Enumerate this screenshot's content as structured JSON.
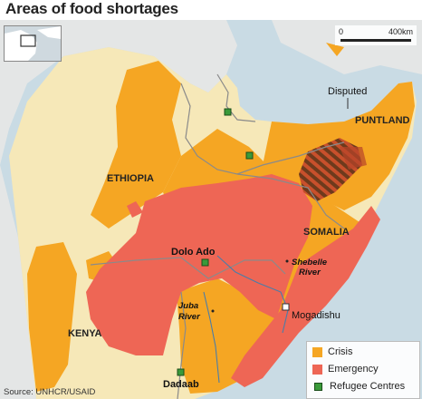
{
  "title": "Areas of food shortages",
  "scale": {
    "start": "0",
    "end": "400km"
  },
  "labels": {
    "disputed": "Disputed",
    "puntland": "PUNTLAND",
    "ethiopia": "ETHIOPIA",
    "somalia": "SOMALIA",
    "kenya": "KENYA",
    "dolo_ado": "Dolo Ado",
    "shebelle_1": "Shebelle",
    "shebelle_2": "River",
    "juba_1": "Juba",
    "juba_2": "River",
    "mogadishu": "Mogadishu",
    "dadaab": "Dadaab"
  },
  "legend": [
    {
      "label": "Crisis",
      "color": "#f5a623"
    },
    {
      "label": "Emergency",
      "color": "#ee6655"
    },
    {
      "label": "Refugee Centres",
      "color": "#3a9a3a"
    }
  ],
  "colors": {
    "sea": "#c9dbe4",
    "land": "#f6e8b8",
    "crisis": "#f5a623",
    "emergency": "#ee6655",
    "outside": "#e4e6e6",
    "refugee": "#3a9a3a"
  },
  "source": "Source: UNHCR/USAID"
}
